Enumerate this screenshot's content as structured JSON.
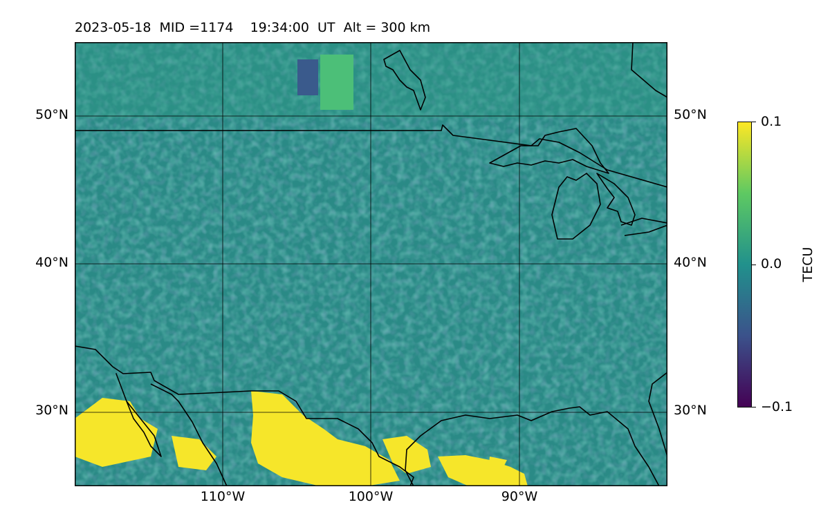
{
  "title": "2023-05-18  MID =1174    19:34:00  UT  Alt = 300 km",
  "map": {
    "lat_labels": [
      "50°N",
      "40°N",
      "30°N"
    ],
    "lon_labels": [
      "110°W",
      "100°W",
      "90°W"
    ],
    "lat_range": [
      25,
      55
    ],
    "lon_range": [
      -119,
      -79
    ],
    "colormap": "viridis"
  },
  "colorbar": {
    "label": "TECU",
    "ticks": [
      "0.1",
      "0.0",
      "−0.1"
    ],
    "range": [
      -0.1,
      0.1
    ],
    "colors": [
      "#440154",
      "#3b528b",
      "#21918c",
      "#5ec962",
      "#fde725"
    ]
  }
}
